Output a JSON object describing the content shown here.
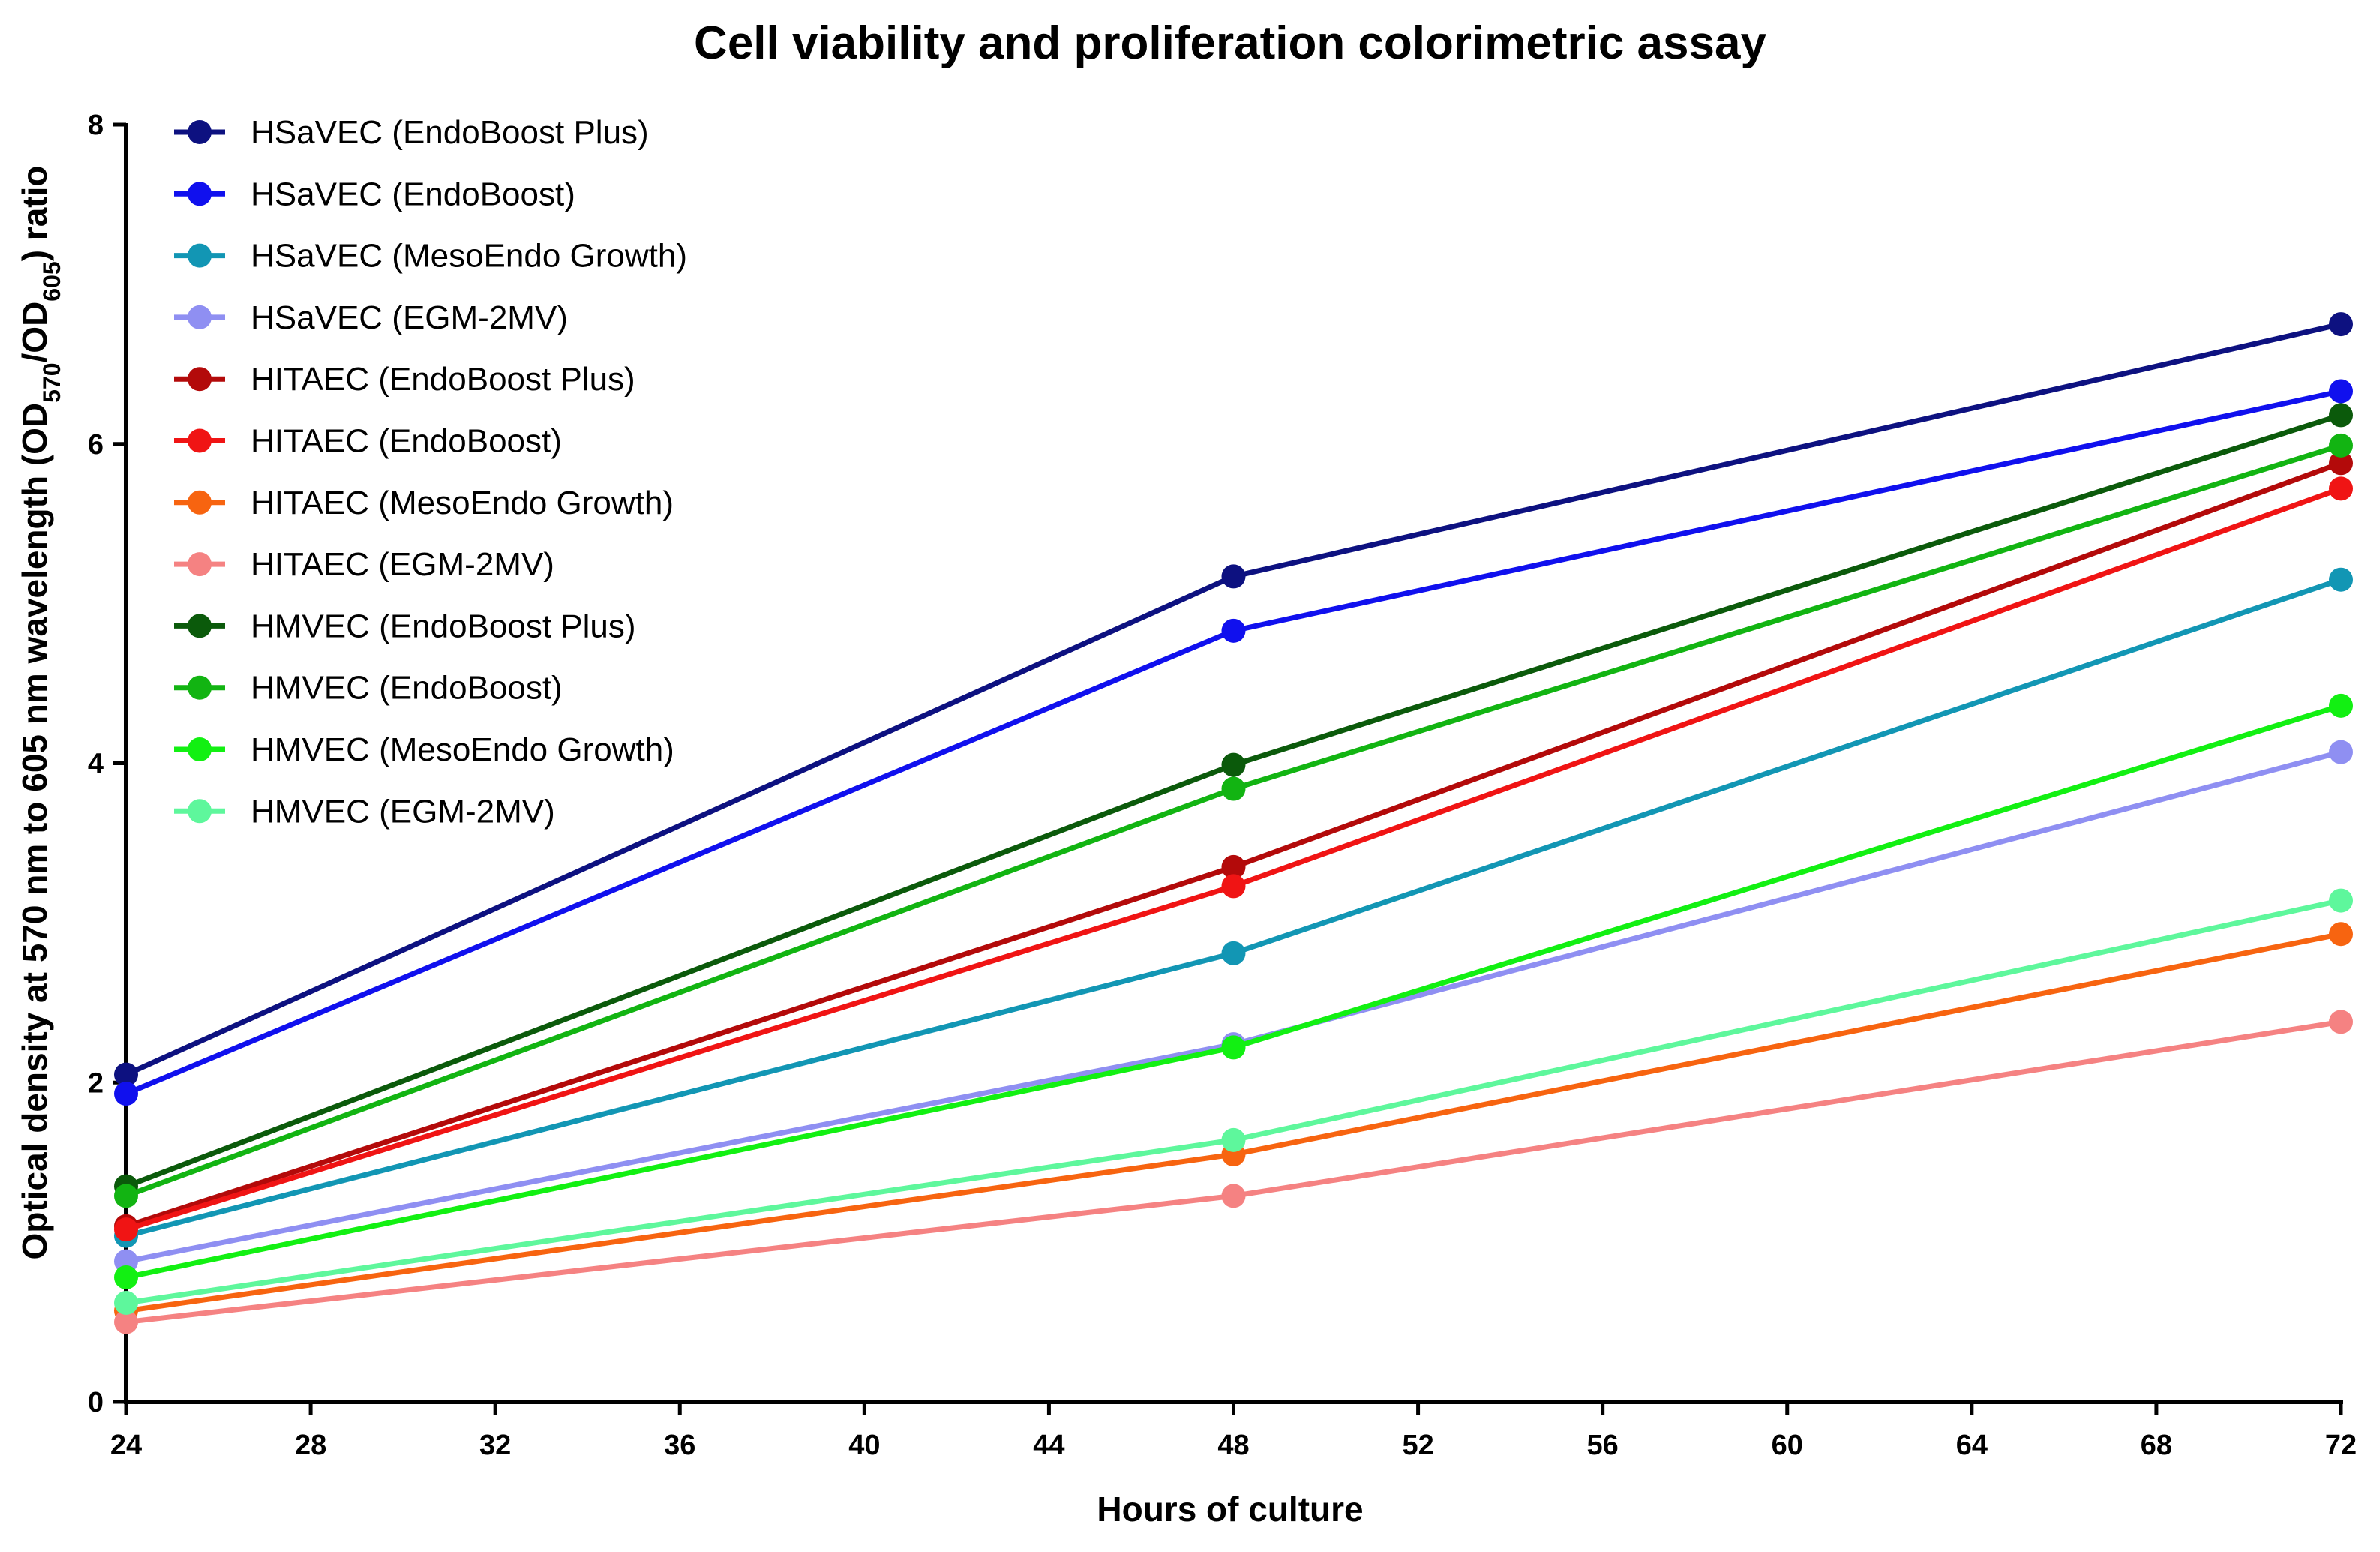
{
  "chart_data": {
    "type": "line",
    "title": "Cell viability and proliferation colorimetric assay",
    "xlabel": "Hours of culture",
    "ylabel": {
      "prefix": "Optical density at 570 nm to 605 nm wavelength (OD",
      "sub1": "570",
      "mid": "/OD",
      "sub2": "605",
      "suffix": ") ratio"
    },
    "xlim": [
      24,
      72
    ],
    "ylim": [
      0,
      8
    ],
    "xticks": [
      24,
      28,
      32,
      36,
      40,
      44,
      48,
      52,
      56,
      60,
      64,
      68,
      72
    ],
    "yticks": [
      0,
      2,
      4,
      6,
      8
    ],
    "grid": false,
    "legend_position": "top-left",
    "x": [
      24,
      48,
      72
    ],
    "series": [
      {
        "name": "HSaVEC (EndoBoost Plus)",
        "color": "#0d1180",
        "values": [
          2.05,
          5.17,
          6.75
        ]
      },
      {
        "name": "HSaVEC (EndoBoost)",
        "color": "#1010ee",
        "values": [
          1.93,
          4.83,
          6.33
        ]
      },
      {
        "name": "HSaVEC (MesoEndo Growth)",
        "color": "#1296b4",
        "values": [
          1.04,
          2.81,
          5.15
        ]
      },
      {
        "name": "HSaVEC (EGM-2MV)",
        "color": "#8f8ff2",
        "values": [
          0.88,
          2.24,
          4.07
        ]
      },
      {
        "name": "HITAEC (EndoBoost Plus)",
        "color": "#b30a0a",
        "values": [
          1.1,
          3.35,
          5.88
        ]
      },
      {
        "name": "HITAEC (EndoBoost)",
        "color": "#f01414",
        "values": [
          1.08,
          3.23,
          5.72
        ]
      },
      {
        "name": "HITAEC (MesoEndo Growth)",
        "color": "#f76410",
        "values": [
          0.57,
          1.55,
          2.93
        ]
      },
      {
        "name": "HITAEC (EGM-2MV)",
        "color": "#f58282",
        "values": [
          0.5,
          1.29,
          2.38
        ]
      },
      {
        "name": "HMVEC (EndoBoost Plus)",
        "color": "#0b5a0b",
        "values": [
          1.35,
          3.99,
          6.18
        ]
      },
      {
        "name": "HMVEC (EndoBoost)",
        "color": "#12b412",
        "values": [
          1.29,
          3.84,
          5.99
        ]
      },
      {
        "name": "HMVEC (MesoEndo Growth)",
        "color": "#12f012",
        "values": [
          0.78,
          2.22,
          4.36
        ]
      },
      {
        "name": "HMVEC (EGM-2MV)",
        "color": "#5ef79c",
        "values": [
          0.62,
          1.64,
          3.14
        ]
      }
    ]
  }
}
